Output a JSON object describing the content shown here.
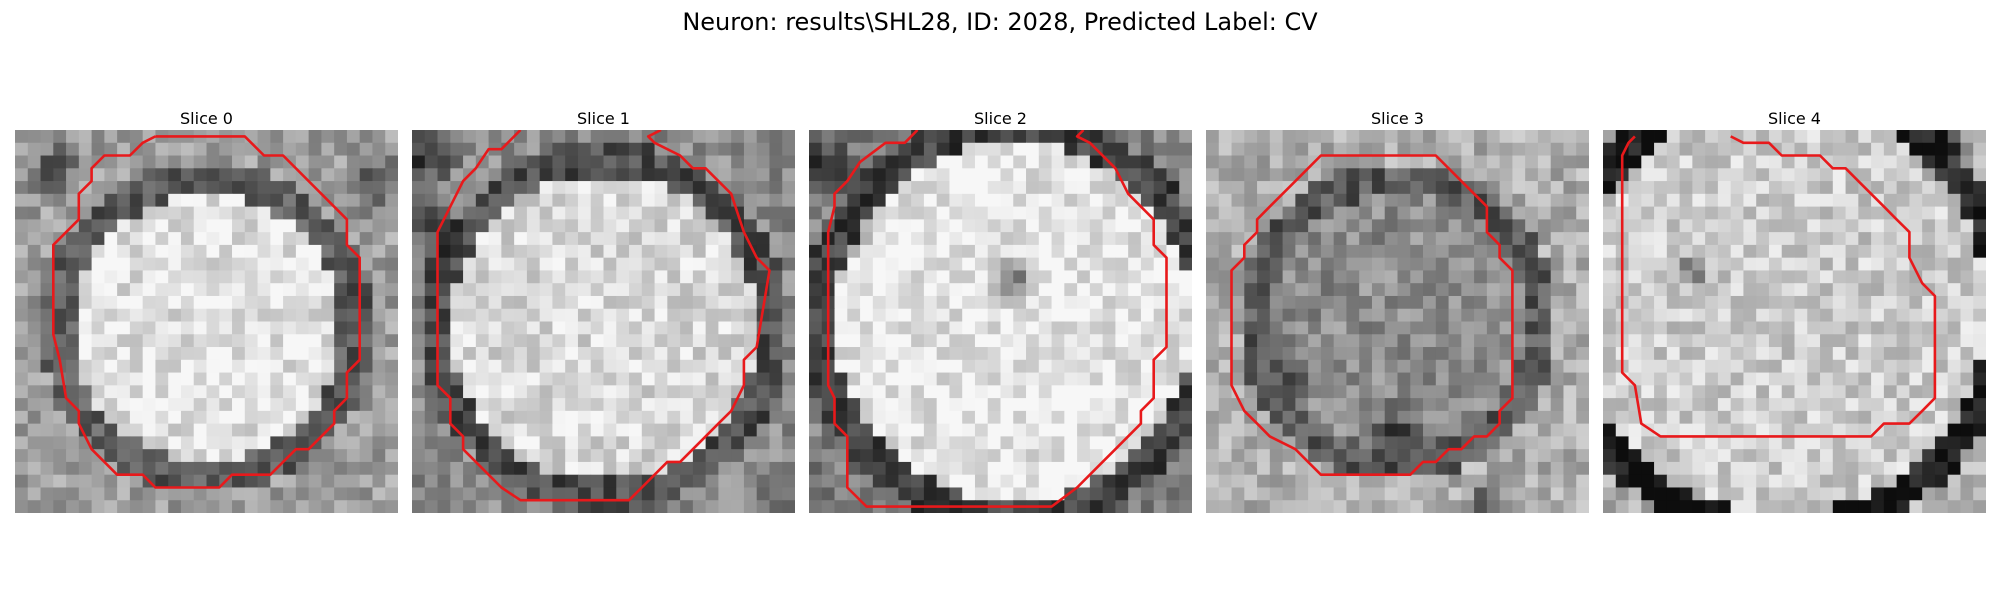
{
  "figure": {
    "title": "Neuron: results\\SHL28, ID: 2028, Predicted Label: CV",
    "contour_color": "#e8191b"
  },
  "panels": [
    {
      "title": "Slice 0"
    },
    {
      "title": "Slice 1"
    },
    {
      "title": "Slice 2"
    },
    {
      "title": "Slice 3"
    },
    {
      "title": "Slice 4"
    }
  ]
}
